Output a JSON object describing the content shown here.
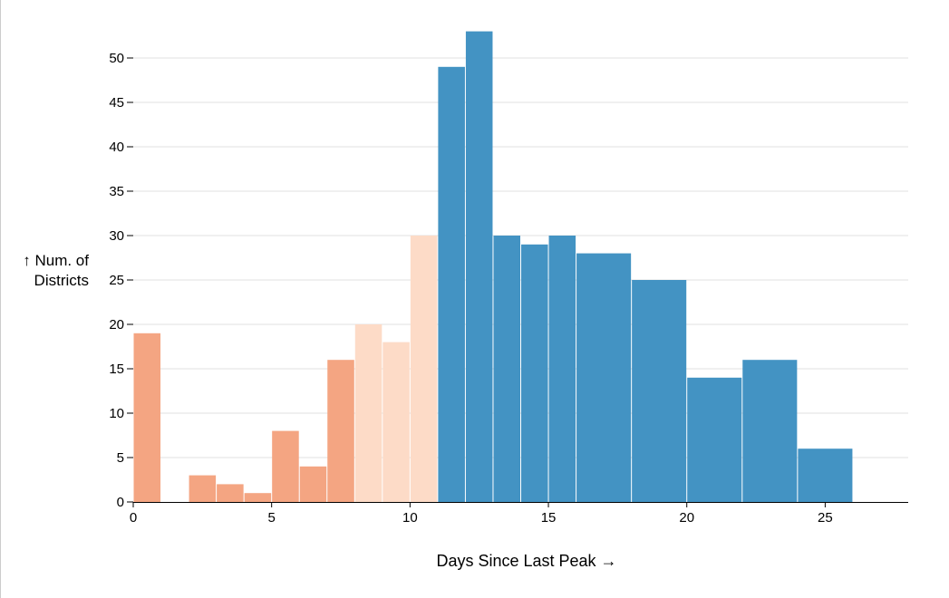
{
  "chart_data": {
    "type": "bar",
    "title": "",
    "xlabel": "Days Since Last Peak →",
    "ylabel_lines": [
      "↑ Num. of",
      "Districts"
    ],
    "xlim": [
      0,
      28
    ],
    "ylim": [
      0,
      55
    ],
    "x_ticks": [
      0,
      5,
      10,
      15,
      20,
      25
    ],
    "y_ticks": [
      0,
      5,
      10,
      15,
      20,
      25,
      30,
      35,
      40,
      45,
      50
    ],
    "grid": "horizontal",
    "colors": {
      "low": "#f4a582",
      "mid": "#fddbc7",
      "high": "#4393c3",
      "grid": "#e0e0e0",
      "axis": "#000000"
    },
    "bins": [
      {
        "x0": 0,
        "x1": 1,
        "value": 19,
        "group": "low"
      },
      {
        "x0": 2,
        "x1": 3,
        "value": 3,
        "group": "low"
      },
      {
        "x0": 3,
        "x1": 4,
        "value": 2,
        "group": "low"
      },
      {
        "x0": 4,
        "x1": 5,
        "value": 1,
        "group": "low"
      },
      {
        "x0": 5,
        "x1": 6,
        "value": 8,
        "group": "low"
      },
      {
        "x0": 6,
        "x1": 7,
        "value": 4,
        "group": "low"
      },
      {
        "x0": 7,
        "x1": 8,
        "value": 16,
        "group": "low"
      },
      {
        "x0": 8,
        "x1": 9,
        "value": 20,
        "group": "mid"
      },
      {
        "x0": 9,
        "x1": 10,
        "value": 18,
        "group": "mid"
      },
      {
        "x0": 10,
        "x1": 11,
        "value": 30,
        "group": "mid"
      },
      {
        "x0": 11,
        "x1": 12,
        "value": 49,
        "group": "high"
      },
      {
        "x0": 12,
        "x1": 13,
        "value": 53,
        "group": "high"
      },
      {
        "x0": 13,
        "x1": 14,
        "value": 30,
        "group": "high"
      },
      {
        "x0": 14,
        "x1": 15,
        "value": 29,
        "group": "high"
      },
      {
        "x0": 15,
        "x1": 16,
        "value": 30,
        "group": "high"
      },
      {
        "x0": 16,
        "x1": 18,
        "value": 28,
        "group": "high"
      },
      {
        "x0": 18,
        "x1": 20,
        "value": 25,
        "group": "high"
      },
      {
        "x0": 20,
        "x1": 22,
        "value": 14,
        "group": "high"
      },
      {
        "x0": 22,
        "x1": 24,
        "value": 16,
        "group": "high"
      },
      {
        "x0": 24,
        "x1": 26,
        "value": 6,
        "group": "high"
      }
    ]
  }
}
